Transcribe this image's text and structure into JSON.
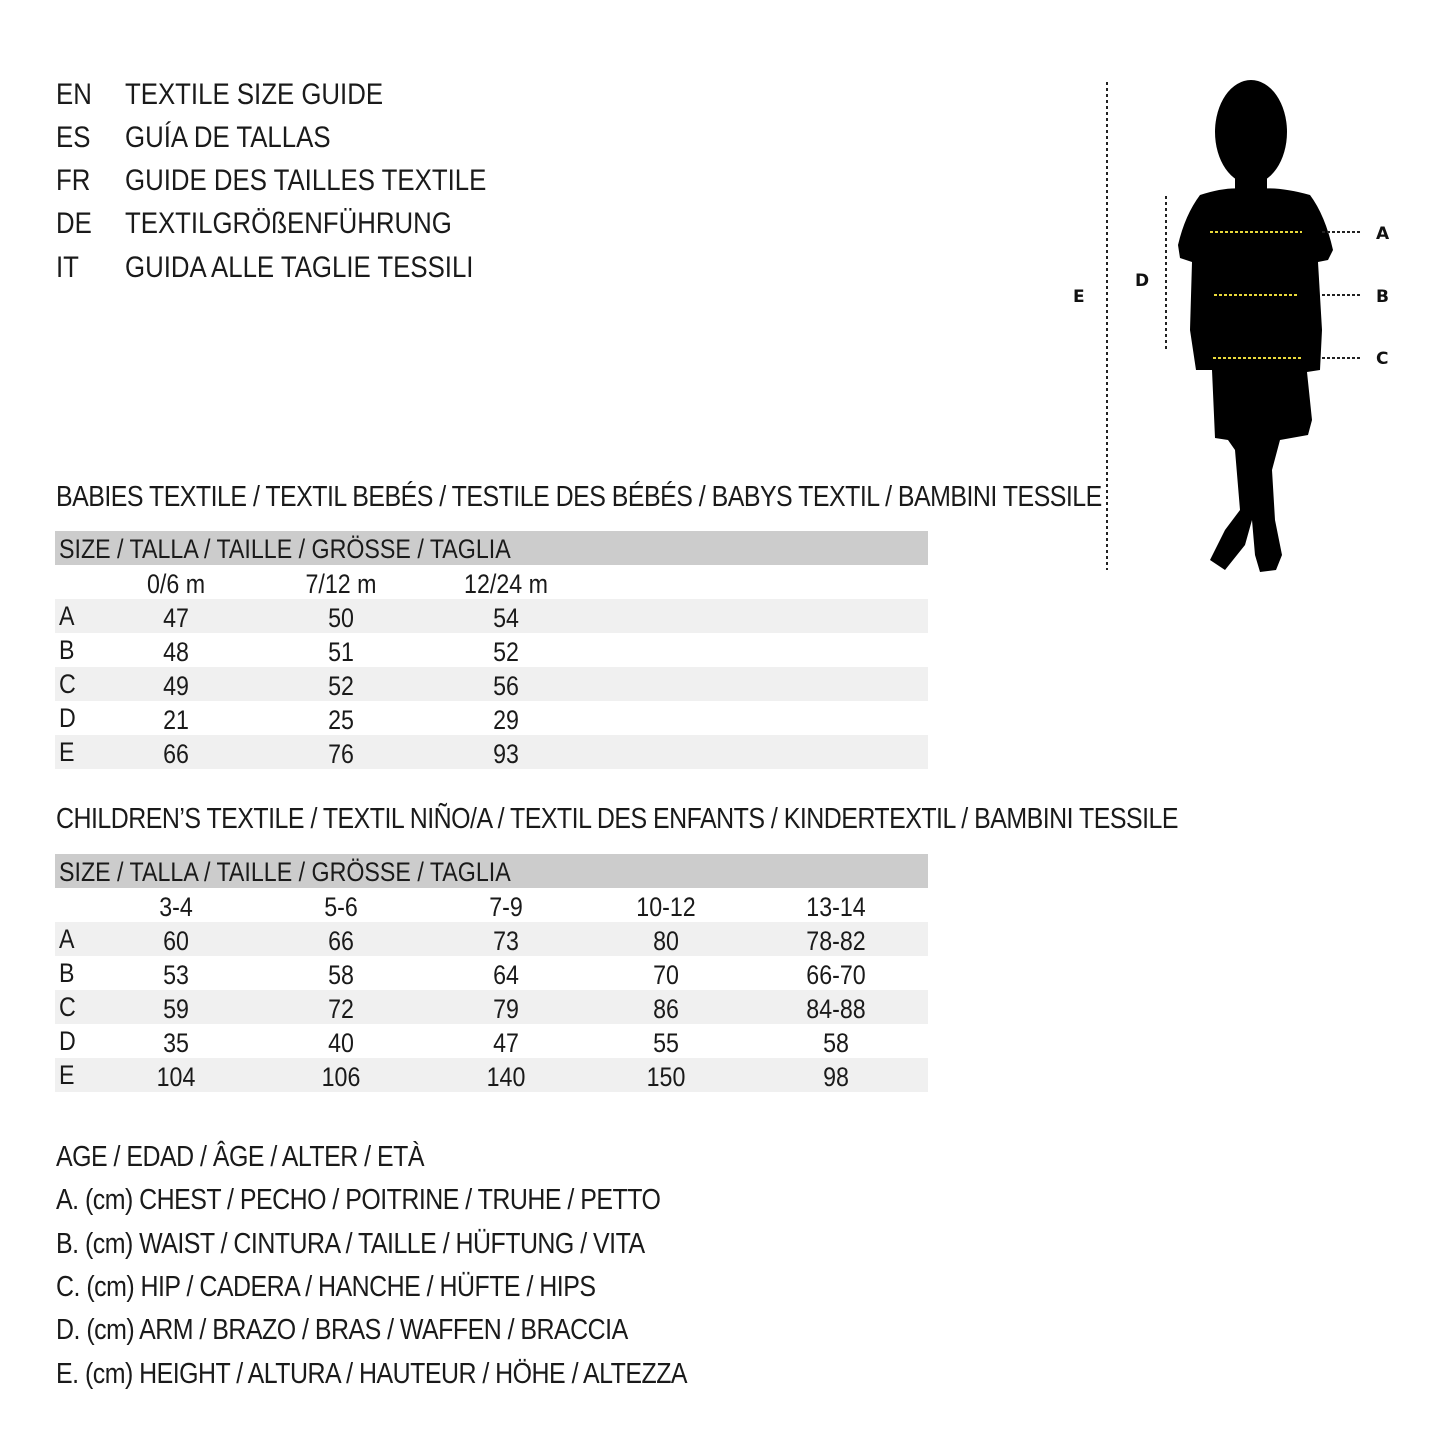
{
  "titles": [
    {
      "code": "EN",
      "text": "TEXTILE SIZE GUIDE"
    },
    {
      "code": "ES",
      "text": "GUÍA DE TALLAS"
    },
    {
      "code": "FR",
      "text": "GUIDE DES TAILLES TEXTILE"
    },
    {
      "code": "DE",
      "text": "TEXTILGRÖßENFÜHRUNG"
    },
    {
      "code": "IT",
      "text": "GUIDA ALLE TAGLIE TESSILI"
    }
  ],
  "figure": {
    "labels": {
      "A": "A",
      "B": "B",
      "C": "C",
      "D": "D",
      "E": "E"
    },
    "colors": {
      "silhouette": "#000000",
      "measure_line": "#e8d83a"
    }
  },
  "babies": {
    "title": "BABIES TEXTILE / TEXTIL BEBÉS / TESTILE DES BÉBÉS / BABYS TEXTIL / BAMBINI TESSILE",
    "size_header": "SIZE / TALLA / TAILLE / GRÖSSE / TAGLIA",
    "columns": [
      "0/6 m",
      "7/12 m",
      "12/24 m"
    ],
    "rows": [
      {
        "label": "A",
        "values": [
          "47",
          "50",
          "54"
        ]
      },
      {
        "label": "B",
        "values": [
          "48",
          "51",
          "52"
        ]
      },
      {
        "label": "C",
        "values": [
          "49",
          "52",
          "56"
        ]
      },
      {
        "label": "D",
        "values": [
          "21",
          "25",
          "29"
        ]
      },
      {
        "label": "E",
        "values": [
          "66",
          "76",
          "93"
        ]
      }
    ]
  },
  "children": {
    "title": "CHILDREN’S TEXTILE / TEXTIL NIÑO/A / TEXTIL DES ENFANTS / KINDERTEXTIL / BAMBINI TESSILE",
    "size_header": "SIZE / TALLA / TAILLE / GRÖSSE / TAGLIA",
    "columns": [
      "3-4",
      "5-6",
      "7-9",
      "10-12",
      "13-14"
    ],
    "rows": [
      {
        "label": "A",
        "values": [
          "60",
          "66",
          "73",
          "80",
          "78-82"
        ]
      },
      {
        "label": "B",
        "values": [
          "53",
          "58",
          "64",
          "70",
          "66-70"
        ]
      },
      {
        "label": "C",
        "values": [
          "59",
          "72",
          "79",
          "86",
          "84-88"
        ]
      },
      {
        "label": "D",
        "values": [
          "35",
          "40",
          "47",
          "55",
          "58"
        ]
      },
      {
        "label": "E",
        "values": [
          "104",
          "106",
          "140",
          "150",
          "98"
        ]
      }
    ]
  },
  "legend": [
    "AGE / EDAD / ÂGE / ALTER / ETÀ",
    "A. (cm) CHEST / PECHO / POITRINE / TRUHE / PETTO",
    "B. (cm) WAIST / CINTURA / TAILLE / HÜFTUNG / VITA",
    "C. (cm) HIP / CADERA / HANCHE / HÜFTE / HIPS",
    "D. (cm) ARM / BRAZO / BRAS / WAFFEN / BRACCIA",
    "E. (cm) HEIGHT / ALTURA / HAUTEUR / HÖHE / ALTEZZA"
  ]
}
